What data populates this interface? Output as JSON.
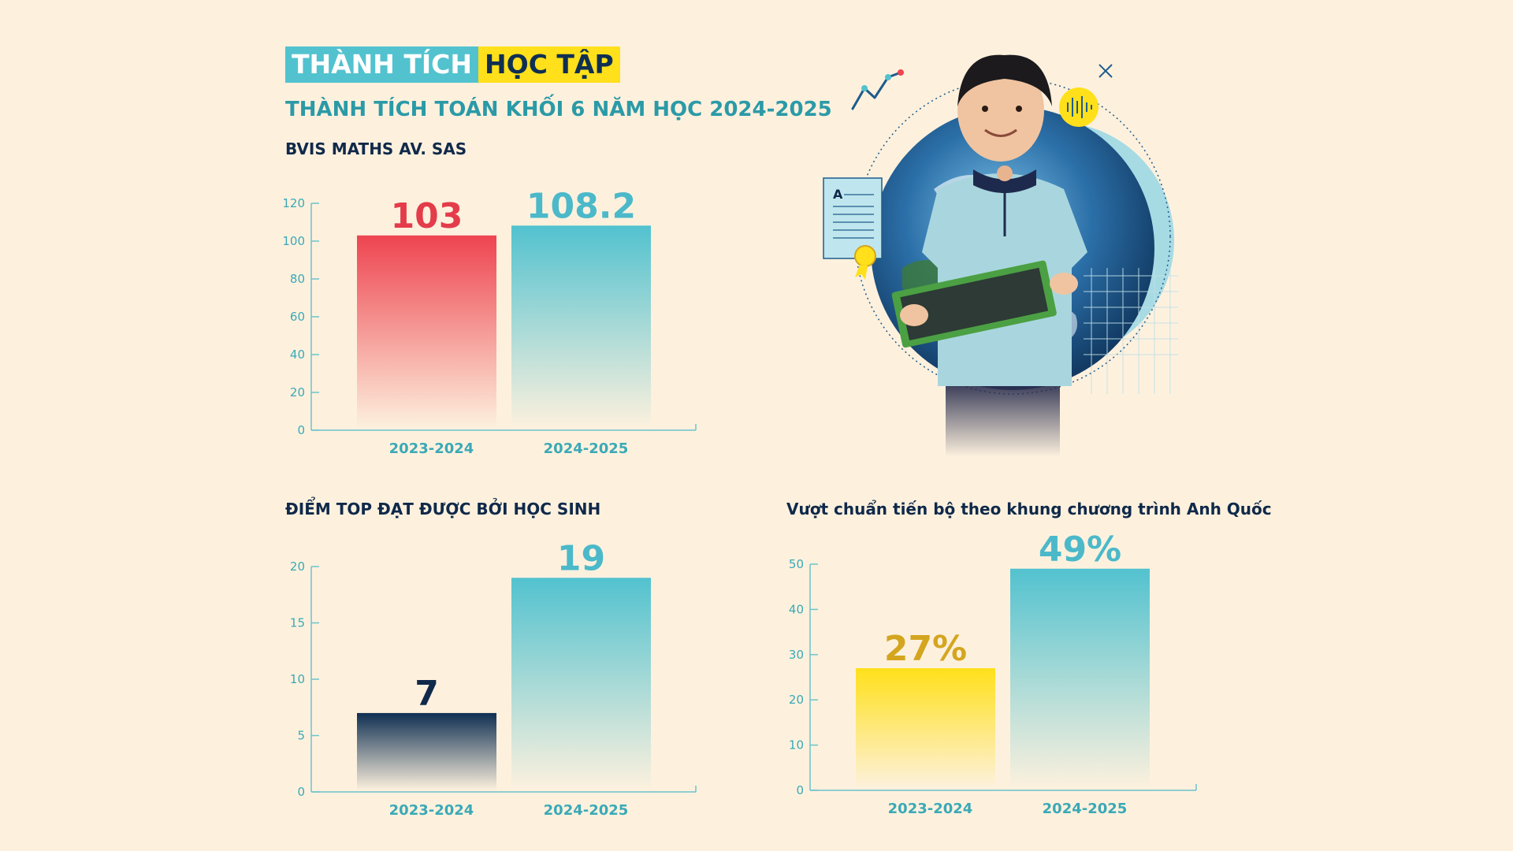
{
  "header": {
    "title_part1": "THÀNH TÍCH",
    "title_part2": "HỌC TẬP",
    "subtitle": "THÀNH TÍCH TOÁN KHỐI 6 NĂM HỌC 2024-2025"
  },
  "illustration": {
    "tablet_letter": "A",
    "icons": [
      "line-graph-icon",
      "sound-wave-icon",
      "certificate-icon",
      "award-ribbon-icon",
      "globe-icon",
      "student-photo"
    ]
  },
  "colors": {
    "background": "#fdf1de",
    "teal": "#52c2cf",
    "red": "#ee4450",
    "yellow": "#ffe01a",
    "navy": "#0f2f52",
    "axis": "#6cc3cc"
  },
  "chart_data": [
    {
      "type": "bar",
      "title": "BVIS MATHS AV. SAS",
      "categories": [
        "2023-2024",
        "2024-2025"
      ],
      "values": [
        103,
        108.2
      ],
      "data_labels": [
        "103",
        "108.2"
      ],
      "ylim": [
        0,
        120
      ],
      "yticks": [
        0,
        20,
        40,
        60,
        80,
        100,
        120
      ],
      "bar_colors": [
        "#ee4450",
        "#52c2cf"
      ],
      "label_colors": [
        "#e43c4a",
        "#4bb9c9"
      ]
    },
    {
      "type": "bar",
      "title": "ĐIỂM TOP ĐẠT ĐƯỢC BỞI HỌC SINH",
      "categories": [
        "2023-2024",
        "2024-2025"
      ],
      "values": [
        7,
        19
      ],
      "data_labels": [
        "7",
        "19"
      ],
      "ylim": [
        0,
        20
      ],
      "yticks": [
        0,
        5,
        10,
        15,
        20
      ],
      "bar_colors": [
        "#0f2f52",
        "#52c2cf"
      ],
      "label_colors": [
        "#10294a",
        "#4bb9c9"
      ]
    },
    {
      "type": "bar",
      "title": "Vượt chuẩn tiến bộ theo khung chương trình Anh Quốc",
      "categories": [
        "2023-2024",
        "2024-2025"
      ],
      "values": [
        27,
        49
      ],
      "data_labels": [
        "27%",
        "49%"
      ],
      "ylim": [
        0,
        50
      ],
      "yticks": [
        0,
        10,
        20,
        30,
        40,
        50
      ],
      "bar_colors": [
        "#ffe01a",
        "#52c2cf"
      ],
      "label_colors": [
        "#d4a51f",
        "#4bb9c9"
      ]
    }
  ]
}
